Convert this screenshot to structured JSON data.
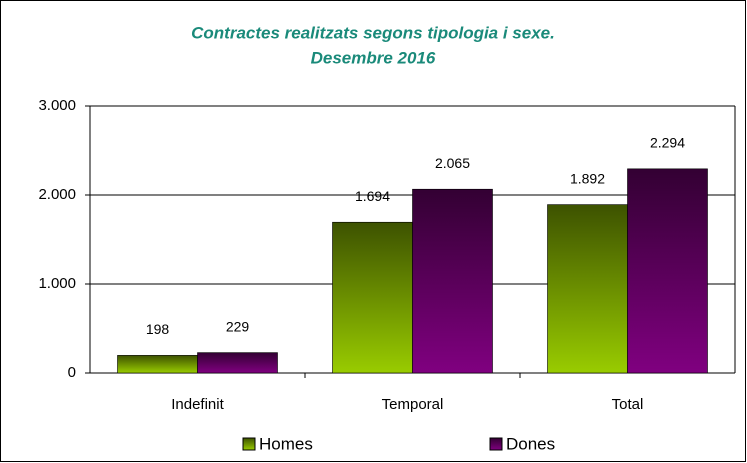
{
  "chart_data": {
    "type": "bar",
    "title": "Contractes realitzats segons tipologia i sexe.",
    "subtitle": "Desembre 2016",
    "categories": [
      "Indefinit",
      "Temporal",
      "Total"
    ],
    "series": [
      {
        "name": "Homes",
        "color": "#99cc00",
        "values": [
          198,
          1694,
          1892
        ],
        "value_labels": [
          "198",
          "1.694",
          "1.892"
        ]
      },
      {
        "name": "Dones",
        "color": "#800080",
        "values": [
          229,
          2065,
          2294
        ],
        "value_labels": [
          "229",
          "2.065",
          "2.294"
        ]
      }
    ],
    "ylim": [
      0,
      3000
    ],
    "yticks": [
      0,
      {
        "value": 1000,
        "label": "1.000"
      },
      {
        "value": 2000,
        "label": "2.000"
      },
      {
        "value": 3000,
        "label": "3.000"
      }
    ],
    "grid": true,
    "legend": "bottom"
  }
}
